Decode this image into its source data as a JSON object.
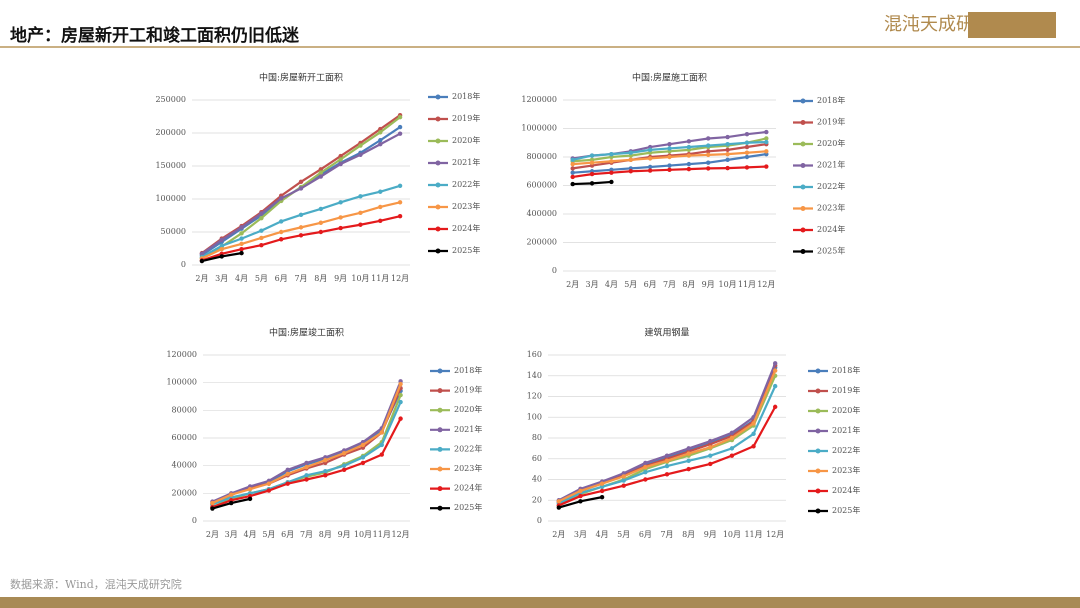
{
  "header": {
    "title": "地产：房屋新开工和竣工面积仍旧低迷",
    "logo": "混沌天成研究院"
  },
  "source": "数据来源：Wind，混沌天成研究院",
  "chart_data": [
    {
      "type": "line",
      "title": "中国:房屋新开工面积",
      "categories": [
        "2月",
        "3月",
        "4月",
        "5月",
        "6月",
        "7月",
        "8月",
        "9月",
        "10月",
        "11月",
        "12月"
      ],
      "ylim": [
        0,
        250000
      ],
      "yticks": [
        0,
        50000,
        100000,
        150000,
        200000,
        250000
      ],
      "grid": true,
      "series": [
        {
          "name": "2018年",
          "color": "#4a7ebb",
          "values": [
            15000,
            35000,
            55000,
            75000,
            98000,
            118000,
            137000,
            155000,
            170000,
            189000,
            209000
          ]
        },
        {
          "name": "2019年",
          "color": "#c0504d",
          "values": [
            18000,
            40000,
            59000,
            80000,
            105000,
            126000,
            145000,
            165000,
            185000,
            206000,
            227000
          ]
        },
        {
          "name": "2020年",
          "color": "#9bbb59",
          "values": [
            10000,
            28000,
            48000,
            71000,
            97000,
            118000,
            140000,
            160000,
            181000,
            201000,
            224000
          ]
        },
        {
          "name": "2021年",
          "color": "#8064a2",
          "values": [
            17000,
            38000,
            57000,
            78000,
            101000,
            116000,
            134000,
            153000,
            167000,
            183000,
            199000
          ]
        },
        {
          "name": "2022年",
          "color": "#4bacc6",
          "values": [
            12000,
            29000,
            40000,
            52000,
            66000,
            76000,
            85000,
            95000,
            104000,
            111000,
            120000
          ]
        },
        {
          "name": "2023年",
          "color": "#f79646",
          "values": [
            10000,
            24000,
            32000,
            41000,
            50000,
            57000,
            64000,
            72000,
            79000,
            88000,
            95000
          ]
        },
        {
          "name": "2024年",
          "color": "#e41a1c",
          "values": [
            7000,
            17000,
            24000,
            30000,
            39000,
            45000,
            50000,
            56000,
            61000,
            67000,
            74000
          ]
        },
        {
          "name": "2025年",
          "color": "#000000",
          "values": [
            6000,
            13000,
            18000,
            null,
            null,
            null,
            null,
            null,
            null,
            null,
            null
          ]
        }
      ]
    },
    {
      "type": "line",
      "title": "中国:房屋施工面积",
      "categories": [
        "2月",
        "3月",
        "4月",
        "5月",
        "6月",
        "7月",
        "8月",
        "9月",
        "10月",
        "11月",
        "12月"
      ],
      "ylim": [
        0,
        1200000
      ],
      "yticks": [
        0,
        200000,
        400000,
        600000,
        800000,
        1000000,
        1200000
      ],
      "grid": true,
      "series": [
        {
          "name": "2018年",
          "color": "#4a7ebb",
          "values": [
            690000,
            700000,
            710000,
            720000,
            730000,
            740000,
            750000,
            760000,
            780000,
            800000,
            820000
          ]
        },
        {
          "name": "2019年",
          "color": "#c0504d",
          "values": [
            720000,
            740000,
            760000,
            780000,
            800000,
            810000,
            820000,
            840000,
            850000,
            870000,
            890000
          ]
        },
        {
          "name": "2020年",
          "color": "#9bbb59",
          "values": [
            770000,
            780000,
            800000,
            810000,
            830000,
            840000,
            850000,
            870000,
            880000,
            900000,
            930000
          ]
        },
        {
          "name": "2021年",
          "color": "#8064a2",
          "values": [
            790000,
            810000,
            820000,
            840000,
            870000,
            890000,
            910000,
            930000,
            940000,
            960000,
            975000
          ]
        },
        {
          "name": "2022年",
          "color": "#4bacc6",
          "values": [
            780000,
            810000,
            820000,
            830000,
            850000,
            860000,
            870000,
            880000,
            890000,
            900000,
            905000
          ]
        },
        {
          "name": "2023年",
          "color": "#f79646",
          "values": [
            750000,
            760000,
            770000,
            780000,
            790000,
            800000,
            810000,
            815000,
            820000,
            830000,
            840000
          ]
        },
        {
          "name": "2024年",
          "color": "#e41a1c",
          "values": [
            660000,
            680000,
            690000,
            700000,
            705000,
            710000,
            715000,
            720000,
            722000,
            727000,
            733000
          ]
        },
        {
          "name": "2025年",
          "color": "#000000",
          "values": [
            610000,
            615000,
            625000,
            null,
            null,
            null,
            null,
            null,
            null,
            null,
            null
          ]
        }
      ]
    },
    {
      "type": "line",
      "title": "中国:房屋竣工面积",
      "categories": [
        "2月",
        "3月",
        "4月",
        "5月",
        "6月",
        "7月",
        "8月",
        "9月",
        "10月",
        "11月",
        "12月"
      ],
      "ylim": [
        0,
        120000
      ],
      "yticks": [
        0,
        20000,
        40000,
        60000,
        80000,
        100000,
        120000
      ],
      "grid": true,
      "series": [
        {
          "name": "2018年",
          "color": "#4a7ebb",
          "values": [
            12000,
            19000,
            24000,
            28000,
            36000,
            41000,
            45000,
            50000,
            56000,
            65000,
            94000
          ]
        },
        {
          "name": "2019年",
          "color": "#c0504d",
          "values": [
            13000,
            19000,
            24000,
            27000,
            33000,
            38000,
            42000,
            48000,
            53000,
            64000,
            96000
          ]
        },
        {
          "name": "2020年",
          "color": "#9bbb59",
          "values": [
            10000,
            16000,
            20000,
            23000,
            28000,
            32000,
            35000,
            41000,
            47000,
            57000,
            91000
          ]
        },
        {
          "name": "2021年",
          "color": "#8064a2",
          "values": [
            14000,
            20000,
            25000,
            29000,
            37000,
            42000,
            46000,
            51000,
            57000,
            67000,
            101000
          ]
        },
        {
          "name": "2022年",
          "color": "#4bacc6",
          "values": [
            12000,
            17000,
            20000,
            23000,
            28000,
            33000,
            36000,
            40000,
            46000,
            55000,
            86000
          ]
        },
        {
          "name": "2023年",
          "color": "#f79646",
          "values": [
            13000,
            19000,
            23000,
            27000,
            34000,
            39000,
            44000,
            49000,
            55000,
            64000,
            99000
          ]
        },
        {
          "name": "2024年",
          "color": "#e41a1c",
          "values": [
            10000,
            15000,
            18000,
            22000,
            27000,
            30000,
            33000,
            37000,
            42000,
            48000,
            74000
          ]
        },
        {
          "name": "2025年",
          "color": "#000000",
          "values": [
            9000,
            13000,
            16000,
            null,
            null,
            null,
            null,
            null,
            null,
            null,
            null
          ]
        }
      ]
    },
    {
      "type": "line",
      "title": "建筑用钢量",
      "categories": [
        "2月",
        "3月",
        "4月",
        "5月",
        "6月",
        "7月",
        "8月",
        "9月",
        "10月",
        "11月",
        "12月"
      ],
      "ylim": [
        0,
        160
      ],
      "yticks": [
        0,
        20,
        40,
        60,
        80,
        100,
        120,
        140,
        160
      ],
      "grid": true,
      "series": [
        {
          "name": "2018年",
          "color": "#4a7ebb",
          "values": [
            18,
            29,
            36,
            44,
            54,
            61,
            68,
            75,
            83,
            97,
            148
          ]
        },
        {
          "name": "2019年",
          "color": "#c0504d",
          "values": [
            19,
            30,
            37,
            44,
            53,
            60,
            67,
            74,
            82,
            96,
            150
          ]
        },
        {
          "name": "2020年",
          "color": "#9bbb59",
          "values": [
            15,
            26,
            33,
            40,
            50,
            57,
            63,
            70,
            78,
            92,
            140
          ]
        },
        {
          "name": "2021年",
          "color": "#8064a2",
          "values": [
            20,
            31,
            38,
            46,
            56,
            63,
            70,
            77,
            85,
            100,
            152
          ]
        },
        {
          "name": "2022年",
          "color": "#4bacc6",
          "values": [
            17,
            27,
            33,
            39,
            47,
            53,
            58,
            63,
            70,
            84,
            130
          ]
        },
        {
          "name": "2023年",
          "color": "#f79646",
          "values": [
            19,
            29,
            36,
            43,
            52,
            58,
            65,
            71,
            80,
            94,
            145
          ]
        },
        {
          "name": "2024年",
          "color": "#e41a1c",
          "values": [
            15,
            24,
            29,
            34,
            40,
            45,
            50,
            55,
            63,
            72,
            110
          ]
        },
        {
          "name": "2025年",
          "color": "#000000",
          "values": [
            13,
            19,
            23,
            null,
            null,
            null,
            null,
            null,
            null,
            null,
            null
          ]
        }
      ]
    }
  ]
}
